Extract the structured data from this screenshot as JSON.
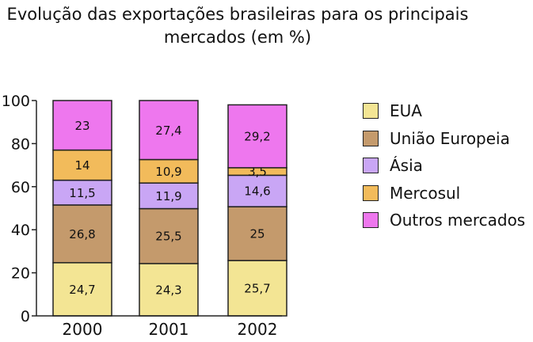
{
  "chart_data": {
    "type": "bar",
    "stacked": true,
    "title_lines": [
      "Evolução das exportações brasileiras para os principais",
      "mercados (em %)"
    ],
    "xlabel": "",
    "ylabel": "",
    "ylim": [
      0,
      100
    ],
    "yticks": [
      "0",
      "20",
      "40",
      "60",
      "80",
      "100"
    ],
    "categories": [
      "2000",
      "2001",
      "2002"
    ],
    "series": [
      {
        "name": "EUA",
        "color": "#f3e594",
        "values": [
          24.7,
          24.3,
          25.7
        ],
        "labels": [
          "24,7",
          "24,3",
          "25,7"
        ]
      },
      {
        "name": "União Europeia",
        "color": "#c49a6c",
        "values": [
          26.8,
          25.5,
          25
        ],
        "labels": [
          "26,8",
          "25,5",
          "25"
        ]
      },
      {
        "name": "Ásia",
        "color": "#c9a6f5",
        "values": [
          11.5,
          11.9,
          14.6
        ],
        "labels": [
          "11,5",
          "11,9",
          "14,6"
        ]
      },
      {
        "name": "Mercosul",
        "color": "#f2bb5b",
        "values": [
          14,
          10.9,
          3.5
        ],
        "labels": [
          "14",
          "10,9",
          "3,5"
        ]
      },
      {
        "name": "Outros mercados",
        "color": "#ee77ee",
        "values": [
          23,
          27.4,
          29.2
        ],
        "labels": [
          "23",
          "27,4",
          "29,2"
        ]
      }
    ],
    "legend_position": "right",
    "grid": false
  }
}
